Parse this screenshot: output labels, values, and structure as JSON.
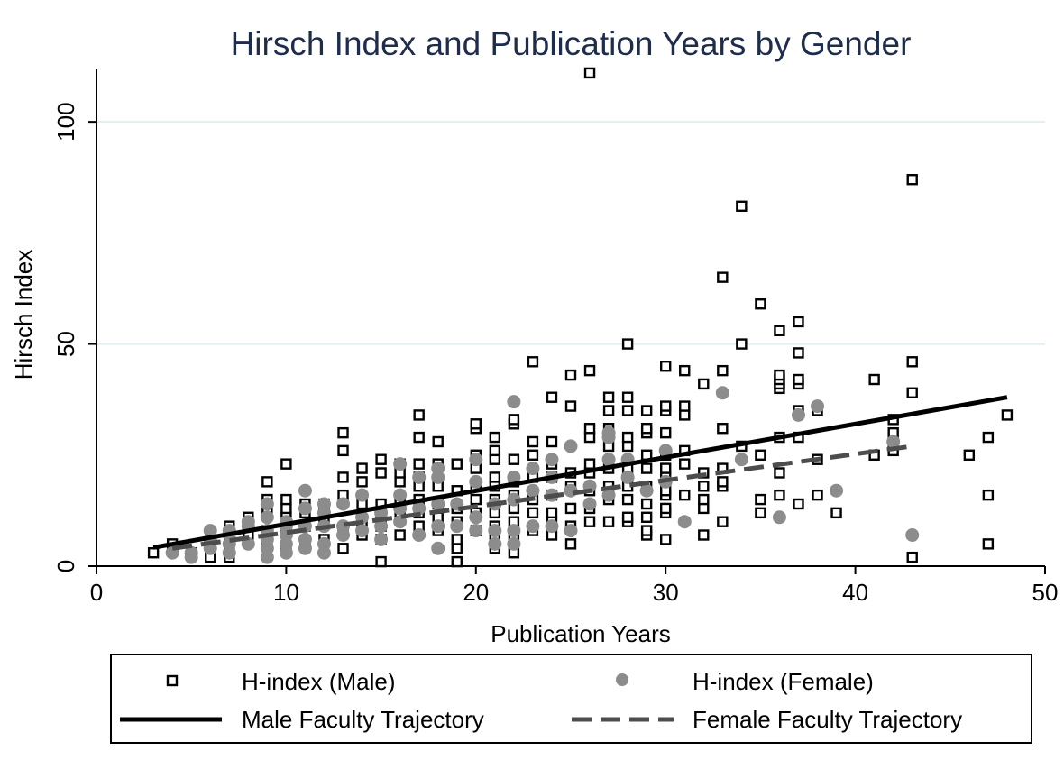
{
  "chart_data": {
    "type": "scatter",
    "title": "Hirsch Index and Publication Years by Gender",
    "xlabel": "Publication Years",
    "ylabel": "Hirsch Index",
    "xlim": [
      0,
      50
    ],
    "ylim": [
      0,
      112
    ],
    "xticks": [
      "0",
      "10",
      "20",
      "30",
      "40",
      "50"
    ],
    "yticks": [
      "0",
      "50",
      "100"
    ],
    "grid": "horizontal",
    "legend_position": "bottom",
    "colors": {
      "male": "#000000",
      "female": "#8c8c8c",
      "female_line": "#4d4d4d",
      "grid": "#e3eef0",
      "title": "#1f2d4d"
    },
    "series": [
      {
        "name": "H-index (Male)",
        "kind": "scatter",
        "marker": "hollow-square",
        "points": [
          [
            3,
            3
          ],
          [
            4,
            5
          ],
          [
            5,
            3
          ],
          [
            6,
            2
          ],
          [
            6,
            5
          ],
          [
            6,
            7
          ],
          [
            7,
            2
          ],
          [
            7,
            4
          ],
          [
            7,
            6
          ],
          [
            7,
            9
          ],
          [
            8,
            7
          ],
          [
            8,
            10
          ],
          [
            8,
            11
          ],
          [
            9,
            5
          ],
          [
            9,
            8
          ],
          [
            9,
            12
          ],
          [
            9,
            15
          ],
          [
            9,
            19
          ],
          [
            10,
            4
          ],
          [
            10,
            8
          ],
          [
            10,
            11
          ],
          [
            10,
            13
          ],
          [
            10,
            15
          ],
          [
            10,
            23
          ],
          [
            11,
            5
          ],
          [
            11,
            9
          ],
          [
            11,
            12
          ],
          [
            11,
            14
          ],
          [
            12,
            6
          ],
          [
            12,
            10
          ],
          [
            12,
            12
          ],
          [
            12,
            14
          ],
          [
            13,
            4
          ],
          [
            13,
            8
          ],
          [
            13,
            16
          ],
          [
            13,
            20
          ],
          [
            13,
            26
          ],
          [
            13,
            30
          ],
          [
            14,
            7
          ],
          [
            14,
            10
          ],
          [
            14,
            14
          ],
          [
            14,
            19
          ],
          [
            14,
            22
          ],
          [
            15,
            1
          ],
          [
            15,
            6
          ],
          [
            15,
            9
          ],
          [
            15,
            12
          ],
          [
            15,
            14
          ],
          [
            15,
            21
          ],
          [
            15,
            24
          ],
          [
            16,
            7
          ],
          [
            16,
            12
          ],
          [
            16,
            15
          ],
          [
            16,
            19
          ],
          [
            16,
            21
          ],
          [
            16,
            23
          ],
          [
            17,
            9
          ],
          [
            17,
            12
          ],
          [
            17,
            15
          ],
          [
            17,
            18
          ],
          [
            17,
            20
          ],
          [
            17,
            23
          ],
          [
            17,
            29
          ],
          [
            17,
            34
          ],
          [
            18,
            8
          ],
          [
            18,
            11
          ],
          [
            18,
            14
          ],
          [
            18,
            18
          ],
          [
            18,
            23
          ],
          [
            18,
            28
          ],
          [
            19,
            1
          ],
          [
            19,
            4
          ],
          [
            19,
            6
          ],
          [
            19,
            10
          ],
          [
            19,
            13
          ],
          [
            19,
            17
          ],
          [
            19,
            23
          ],
          [
            20,
            8
          ],
          [
            20,
            12
          ],
          [
            20,
            15
          ],
          [
            20,
            18
          ],
          [
            20,
            22
          ],
          [
            20,
            25
          ],
          [
            20,
            31
          ],
          [
            20,
            32
          ],
          [
            21,
            4
          ],
          [
            21,
            6
          ],
          [
            21,
            9
          ],
          [
            21,
            12
          ],
          [
            21,
            15
          ],
          [
            21,
            18
          ],
          [
            21,
            20
          ],
          [
            21,
            24
          ],
          [
            21,
            26
          ],
          [
            21,
            29
          ],
          [
            22,
            3
          ],
          [
            22,
            7
          ],
          [
            22,
            10
          ],
          [
            22,
            13
          ],
          [
            22,
            16
          ],
          [
            22,
            19
          ],
          [
            22,
            24
          ],
          [
            22,
            32
          ],
          [
            22,
            33
          ],
          [
            23,
            8
          ],
          [
            23,
            12
          ],
          [
            23,
            15
          ],
          [
            23,
            20
          ],
          [
            23,
            25
          ],
          [
            23,
            28
          ],
          [
            23,
            46
          ],
          [
            24,
            7
          ],
          [
            24,
            10
          ],
          [
            24,
            12
          ],
          [
            24,
            16
          ],
          [
            24,
            20
          ],
          [
            24,
            23
          ],
          [
            24,
            28
          ],
          [
            24,
            38
          ],
          [
            25,
            5
          ],
          [
            25,
            9
          ],
          [
            25,
            13
          ],
          [
            25,
            18
          ],
          [
            25,
            21
          ],
          [
            25,
            36
          ],
          [
            25,
            43
          ],
          [
            26,
            10
          ],
          [
            26,
            13
          ],
          [
            26,
            17
          ],
          [
            26,
            21
          ],
          [
            26,
            23
          ],
          [
            26,
            29
          ],
          [
            26,
            31
          ],
          [
            26,
            44
          ],
          [
            26,
            111
          ],
          [
            27,
            10
          ],
          [
            27,
            15
          ],
          [
            27,
            18
          ],
          [
            27,
            22
          ],
          [
            27,
            27
          ],
          [
            27,
            31
          ],
          [
            27,
            35
          ],
          [
            27,
            38
          ],
          [
            28,
            10
          ],
          [
            28,
            11
          ],
          [
            28,
            15
          ],
          [
            28,
            18
          ],
          [
            28,
            22
          ],
          [
            28,
            27
          ],
          [
            28,
            29
          ],
          [
            28,
            35
          ],
          [
            28,
            38
          ],
          [
            28,
            50
          ],
          [
            29,
            7
          ],
          [
            29,
            8
          ],
          [
            29,
            11
          ],
          [
            29,
            14
          ],
          [
            29,
            18
          ],
          [
            29,
            22
          ],
          [
            29,
            25
          ],
          [
            29,
            30
          ],
          [
            29,
            31
          ],
          [
            29,
            35
          ],
          [
            30,
            6
          ],
          [
            30,
            12
          ],
          [
            30,
            13
          ],
          [
            30,
            16
          ],
          [
            30,
            17
          ],
          [
            30,
            20
          ],
          [
            30,
            22
          ],
          [
            30,
            25
          ],
          [
            30,
            30
          ],
          [
            30,
            35
          ],
          [
            30,
            36
          ],
          [
            30,
            45
          ],
          [
            31,
            16
          ],
          [
            31,
            23
          ],
          [
            31,
            26
          ],
          [
            31,
            34
          ],
          [
            31,
            36
          ],
          [
            31,
            44
          ],
          [
            32,
            7
          ],
          [
            32,
            13
          ],
          [
            32,
            15
          ],
          [
            32,
            18
          ],
          [
            32,
            21
          ],
          [
            32,
            41
          ],
          [
            33,
            10
          ],
          [
            33,
            18
          ],
          [
            33,
            19
          ],
          [
            33,
            22
          ],
          [
            33,
            31
          ],
          [
            33,
            44
          ],
          [
            33,
            65
          ],
          [
            34,
            27
          ],
          [
            34,
            50
          ],
          [
            34,
            81
          ],
          [
            35,
            12
          ],
          [
            35,
            15
          ],
          [
            35,
            25
          ],
          [
            35,
            59
          ],
          [
            36,
            16
          ],
          [
            36,
            21
          ],
          [
            36,
            29
          ],
          [
            36,
            40
          ],
          [
            36,
            41
          ],
          [
            36,
            42
          ],
          [
            36,
            43
          ],
          [
            36,
            53
          ],
          [
            37,
            14
          ],
          [
            37,
            29
          ],
          [
            37,
            35
          ],
          [
            37,
            41
          ],
          [
            37,
            42
          ],
          [
            37,
            48
          ],
          [
            37,
            55
          ],
          [
            38,
            16
          ],
          [
            38,
            24
          ],
          [
            38,
            35
          ],
          [
            39,
            12
          ],
          [
            41,
            25
          ],
          [
            41,
            42
          ],
          [
            42,
            26
          ],
          [
            42,
            30
          ],
          [
            42,
            33
          ],
          [
            43,
            2
          ],
          [
            43,
            39
          ],
          [
            43,
            46
          ],
          [
            43,
            87
          ],
          [
            46,
            25
          ],
          [
            47,
            5
          ],
          [
            47,
            16
          ],
          [
            47,
            29
          ],
          [
            48,
            34
          ]
        ]
      },
      {
        "name": "H-index (Female)",
        "kind": "scatter",
        "marker": "filled-circle",
        "points": [
          [
            4,
            3
          ],
          [
            5,
            2
          ],
          [
            5,
            3
          ],
          [
            6,
            4
          ],
          [
            6,
            6
          ],
          [
            6,
            8
          ],
          [
            7,
            3
          ],
          [
            7,
            5
          ],
          [
            7,
            7
          ],
          [
            7,
            8
          ],
          [
            8,
            5
          ],
          [
            8,
            9
          ],
          [
            8,
            10
          ],
          [
            9,
            2
          ],
          [
            9,
            4
          ],
          [
            9,
            6
          ],
          [
            9,
            8
          ],
          [
            9,
            11
          ],
          [
            9,
            14
          ],
          [
            10,
            3
          ],
          [
            10,
            5
          ],
          [
            10,
            7
          ],
          [
            10,
            9
          ],
          [
            10,
            10
          ],
          [
            11,
            4
          ],
          [
            11,
            6
          ],
          [
            11,
            9
          ],
          [
            11,
            13
          ],
          [
            11,
            17
          ],
          [
            12,
            3
          ],
          [
            12,
            5
          ],
          [
            12,
            9
          ],
          [
            12,
            12
          ],
          [
            12,
            14
          ],
          [
            13,
            7
          ],
          [
            13,
            9
          ],
          [
            13,
            14
          ],
          [
            14,
            8
          ],
          [
            14,
            11
          ],
          [
            14,
            16
          ],
          [
            15,
            6
          ],
          [
            15,
            9
          ],
          [
            15,
            12
          ],
          [
            16,
            10
          ],
          [
            16,
            13
          ],
          [
            16,
            16
          ],
          [
            16,
            23
          ],
          [
            17,
            7
          ],
          [
            17,
            13
          ],
          [
            17,
            20
          ],
          [
            18,
            4
          ],
          [
            18,
            9
          ],
          [
            18,
            14
          ],
          [
            18,
            20
          ],
          [
            18,
            22
          ],
          [
            19,
            9
          ],
          [
            19,
            14
          ],
          [
            20,
            8
          ],
          [
            20,
            11
          ],
          [
            20,
            19
          ],
          [
            20,
            24
          ],
          [
            21,
            5
          ],
          [
            21,
            8
          ],
          [
            21,
            14
          ],
          [
            22,
            5
          ],
          [
            22,
            8
          ],
          [
            22,
            15
          ],
          [
            22,
            20
          ],
          [
            22,
            37
          ],
          [
            23,
            9
          ],
          [
            23,
            17
          ],
          [
            23,
            22
          ],
          [
            24,
            9
          ],
          [
            24,
            16
          ],
          [
            24,
            20
          ],
          [
            24,
            24
          ],
          [
            25,
            8
          ],
          [
            25,
            17
          ],
          [
            25,
            27
          ],
          [
            26,
            14
          ],
          [
            26,
            18
          ],
          [
            27,
            16
          ],
          [
            27,
            24
          ],
          [
            27,
            29
          ],
          [
            27,
            30
          ],
          [
            28,
            20
          ],
          [
            28,
            24
          ],
          [
            29,
            17
          ],
          [
            30,
            19
          ],
          [
            30,
            26
          ],
          [
            31,
            10
          ],
          [
            33,
            39
          ],
          [
            34,
            24
          ],
          [
            36,
            11
          ],
          [
            37,
            34
          ],
          [
            38,
            36
          ],
          [
            39,
            17
          ],
          [
            42,
            28
          ],
          [
            43,
            7
          ]
        ]
      },
      {
        "name": "Male Faculty Trajectory",
        "kind": "line",
        "style": "solid",
        "points": [
          [
            3,
            4.2
          ],
          [
            48,
            38
          ]
        ]
      },
      {
        "name": "Female Faculty Trajectory",
        "kind": "line",
        "style": "dashed",
        "points": [
          [
            4,
            4
          ],
          [
            43,
            27
          ]
        ]
      }
    ]
  }
}
